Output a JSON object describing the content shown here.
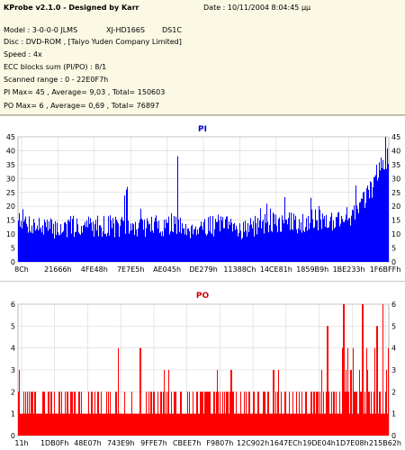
{
  "info": {
    "app_title": "KProbe v2.1.0 - Designed by Karr",
    "date": "Date : 10/11/2004 8:04:45 μμ",
    "model": "Model : 3-0-0-0 JLMS",
    "model_drive": "XJ-HD166S",
    "model_fw": "DS1C",
    "disc": "Disc : DVD-ROM , [Taiyo Yuden Company Limited]",
    "speed": "Speed : 4x",
    "ecc": "ECC blocks sum (PI/PO) : 8/1",
    "range": "Scanned range : 0 - 22E0F7h",
    "pi_stats": "PI Max= 45 , Average= 9,03 , Total= 150603",
    "po_stats": "PO Max= 6 , Average= 0,69 , Total= 76897"
  },
  "charts": {
    "pi": {
      "title": "PI",
      "color": "#0000ff",
      "y_ticks": [
        "0",
        "5",
        "10",
        "15",
        "20",
        "25",
        "30",
        "35",
        "40",
        "45"
      ],
      "x_ticks": [
        "8Ch",
        "21666h",
        "4FE48h",
        "7E7E5h",
        "AE045h",
        "DE279h",
        "11388Ch",
        "14CE81h",
        "1859B9h",
        "1BE233h",
        "1F6BFFh"
      ]
    },
    "po": {
      "title": "PO",
      "color": "#ff0000",
      "y_ticks": [
        "0",
        "1",
        "2",
        "3",
        "4",
        "5",
        "6"
      ],
      "x_ticks": [
        "11h",
        "1DB0Fh",
        "48E07h",
        "743E9h",
        "9FFE7h",
        "CBEE7h",
        "F9807h",
        "12C902h",
        "1647ECh",
        "19DE04h",
        "1D7E08h",
        "215B62h"
      ]
    }
  },
  "chart_data": [
    {
      "type": "area",
      "title": "PI",
      "ylim": [
        0,
        45
      ],
      "x_range": [
        "8Ch",
        "22E0F7h"
      ],
      "grid": true,
      "series": [
        {
          "color": "#0000ff",
          "x_fraction": [
            0,
            0.02,
            0.05,
            0.08,
            0.12,
            0.16,
            0.2,
            0.25,
            0.3,
            0.35,
            0.4,
            0.45,
            0.5,
            0.55,
            0.6,
            0.65,
            0.7,
            0.75,
            0.8,
            0.85,
            0.88,
            0.9,
            0.92,
            0.94,
            0.96,
            0.98,
            1.0
          ],
          "values": [
            17,
            14,
            13,
            12,
            12,
            13,
            13,
            13,
            12,
            13,
            13,
            12,
            13,
            13,
            12,
            13,
            14,
            14,
            15,
            15,
            16,
            17,
            19,
            23,
            28,
            35,
            38
          ],
          "peaks": [
            [
              0.293,
              26
            ],
            [
              0.295,
              27
            ],
            [
              0.43,
              38
            ],
            [
              0.992,
              45
            ]
          ]
        }
      ]
    },
    {
      "type": "area",
      "title": "PO",
      "ylim": [
        0,
        6
      ],
      "x_range": [
        "11h",
        "22E0F7h"
      ],
      "grid": true,
      "series": [
        {
          "color": "#ff0000",
          "baseline": 1,
          "frequent_level": 2,
          "peaks": [
            [
              0.27,
              4
            ],
            [
              0.33,
              4
            ],
            [
              0.575,
              3
            ],
            [
              0.69,
              3
            ],
            [
              0.82,
              3
            ],
            [
              0.835,
              5
            ],
            [
              0.88,
              6
            ],
            [
              0.905,
              4
            ],
            [
              0.93,
              6
            ],
            [
              0.97,
              5
            ],
            [
              0.985,
              6
            ]
          ]
        }
      ]
    }
  ]
}
